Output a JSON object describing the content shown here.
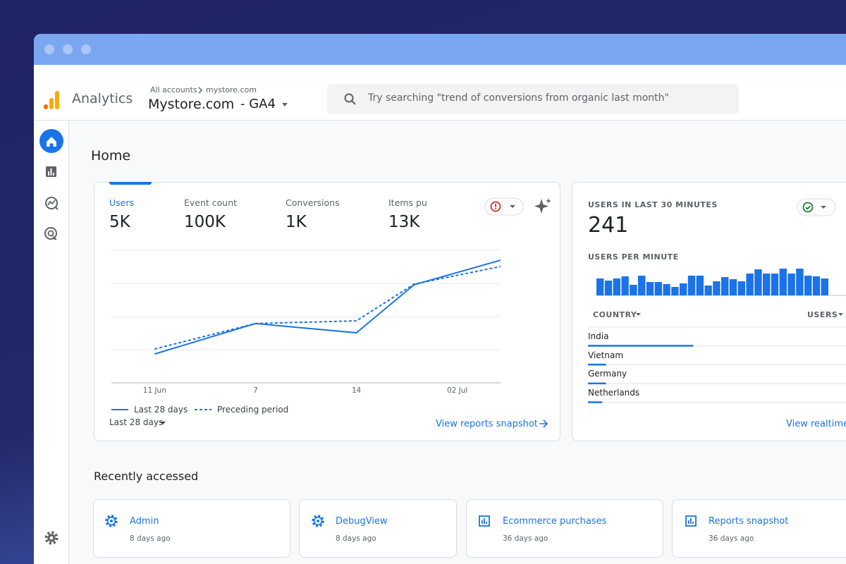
{
  "header": {
    "product": "Analytics",
    "breadcrumb": [
      "All accounts",
      "mystore.com"
    ],
    "property": "Mystore.com",
    "stream": "- GA4",
    "search_placeholder": "Try searching \"trend of conversions from organic last month\""
  },
  "page_title": "Home",
  "overview": {
    "metrics": [
      {
        "label": "Users",
        "value": "5K"
      },
      {
        "label": "Event count",
        "value": "100K"
      },
      {
        "label": "Conversions",
        "value": "1K"
      },
      {
        "label": "Items pur",
        "value": "13K"
      }
    ],
    "date_range": "Last 28 days",
    "link": "View reports snapshot"
  },
  "realtime": {
    "title": "USERS IN LAST 30 MINUTES",
    "value": "241",
    "subtitle": "USERS PER MINUTE",
    "columns": [
      "COUNTRY",
      "USERS"
    ],
    "link": "View realtime"
  },
  "recent": {
    "title": "Recently accessed",
    "items": [
      {
        "name": "Admin",
        "time": "8 days ago"
      },
      {
        "name": "DebugView",
        "time": "8 days ago"
      },
      {
        "name": "Ecommerce purchases",
        "time": "36 days ago"
      },
      {
        "name": "Reports snapshot",
        "time": "36 days ago"
      }
    ]
  },
  "chart_data": [
    {
      "type": "line",
      "x": [
        0,
        7,
        14,
        18,
        24
      ],
      "xlim": [
        -3,
        24
      ],
      "xticks": [
        {
          "value": 0,
          "label": "11 Jun"
        },
        7,
        14,
        {
          "value": 21,
          "label": "02 Jul"
        }
      ],
      "ylim": [
        0,
        400
      ],
      "yticks": [
        0,
        100,
        200,
        300,
        400
      ],
      "grid": true,
      "series": [
        {
          "name": "Last 28 days",
          "color": "#1a73e8",
          "values": [
            87,
            179,
            151,
            296,
            370
          ]
        },
        {
          "name": "Preceding period",
          "color": "#1a73e8",
          "dash": true,
          "values": [
            102,
            179,
            187,
            298,
            351
          ]
        }
      ]
    },
    {
      "type": "bar",
      "color": "#1a73e8",
      "ylim": [
        0,
        40
      ],
      "values": [
        24,
        21,
        24,
        27,
        15,
        28,
        19,
        19,
        16,
        12,
        17,
        28,
        28,
        14,
        20,
        26,
        23,
        20,
        31,
        37,
        31,
        31,
        38,
        31,
        38,
        28,
        27,
        24,
        0,
        0
      ]
    },
    {
      "type": "bar",
      "orientation": "horizontal",
      "color": "#1a73e8",
      "categories": [
        "India",
        "Vietnam",
        "Germany",
        "Netherlands"
      ],
      "values": [
        163,
        28,
        28,
        22
      ],
      "xlim": [
        0,
        400
      ]
    }
  ]
}
